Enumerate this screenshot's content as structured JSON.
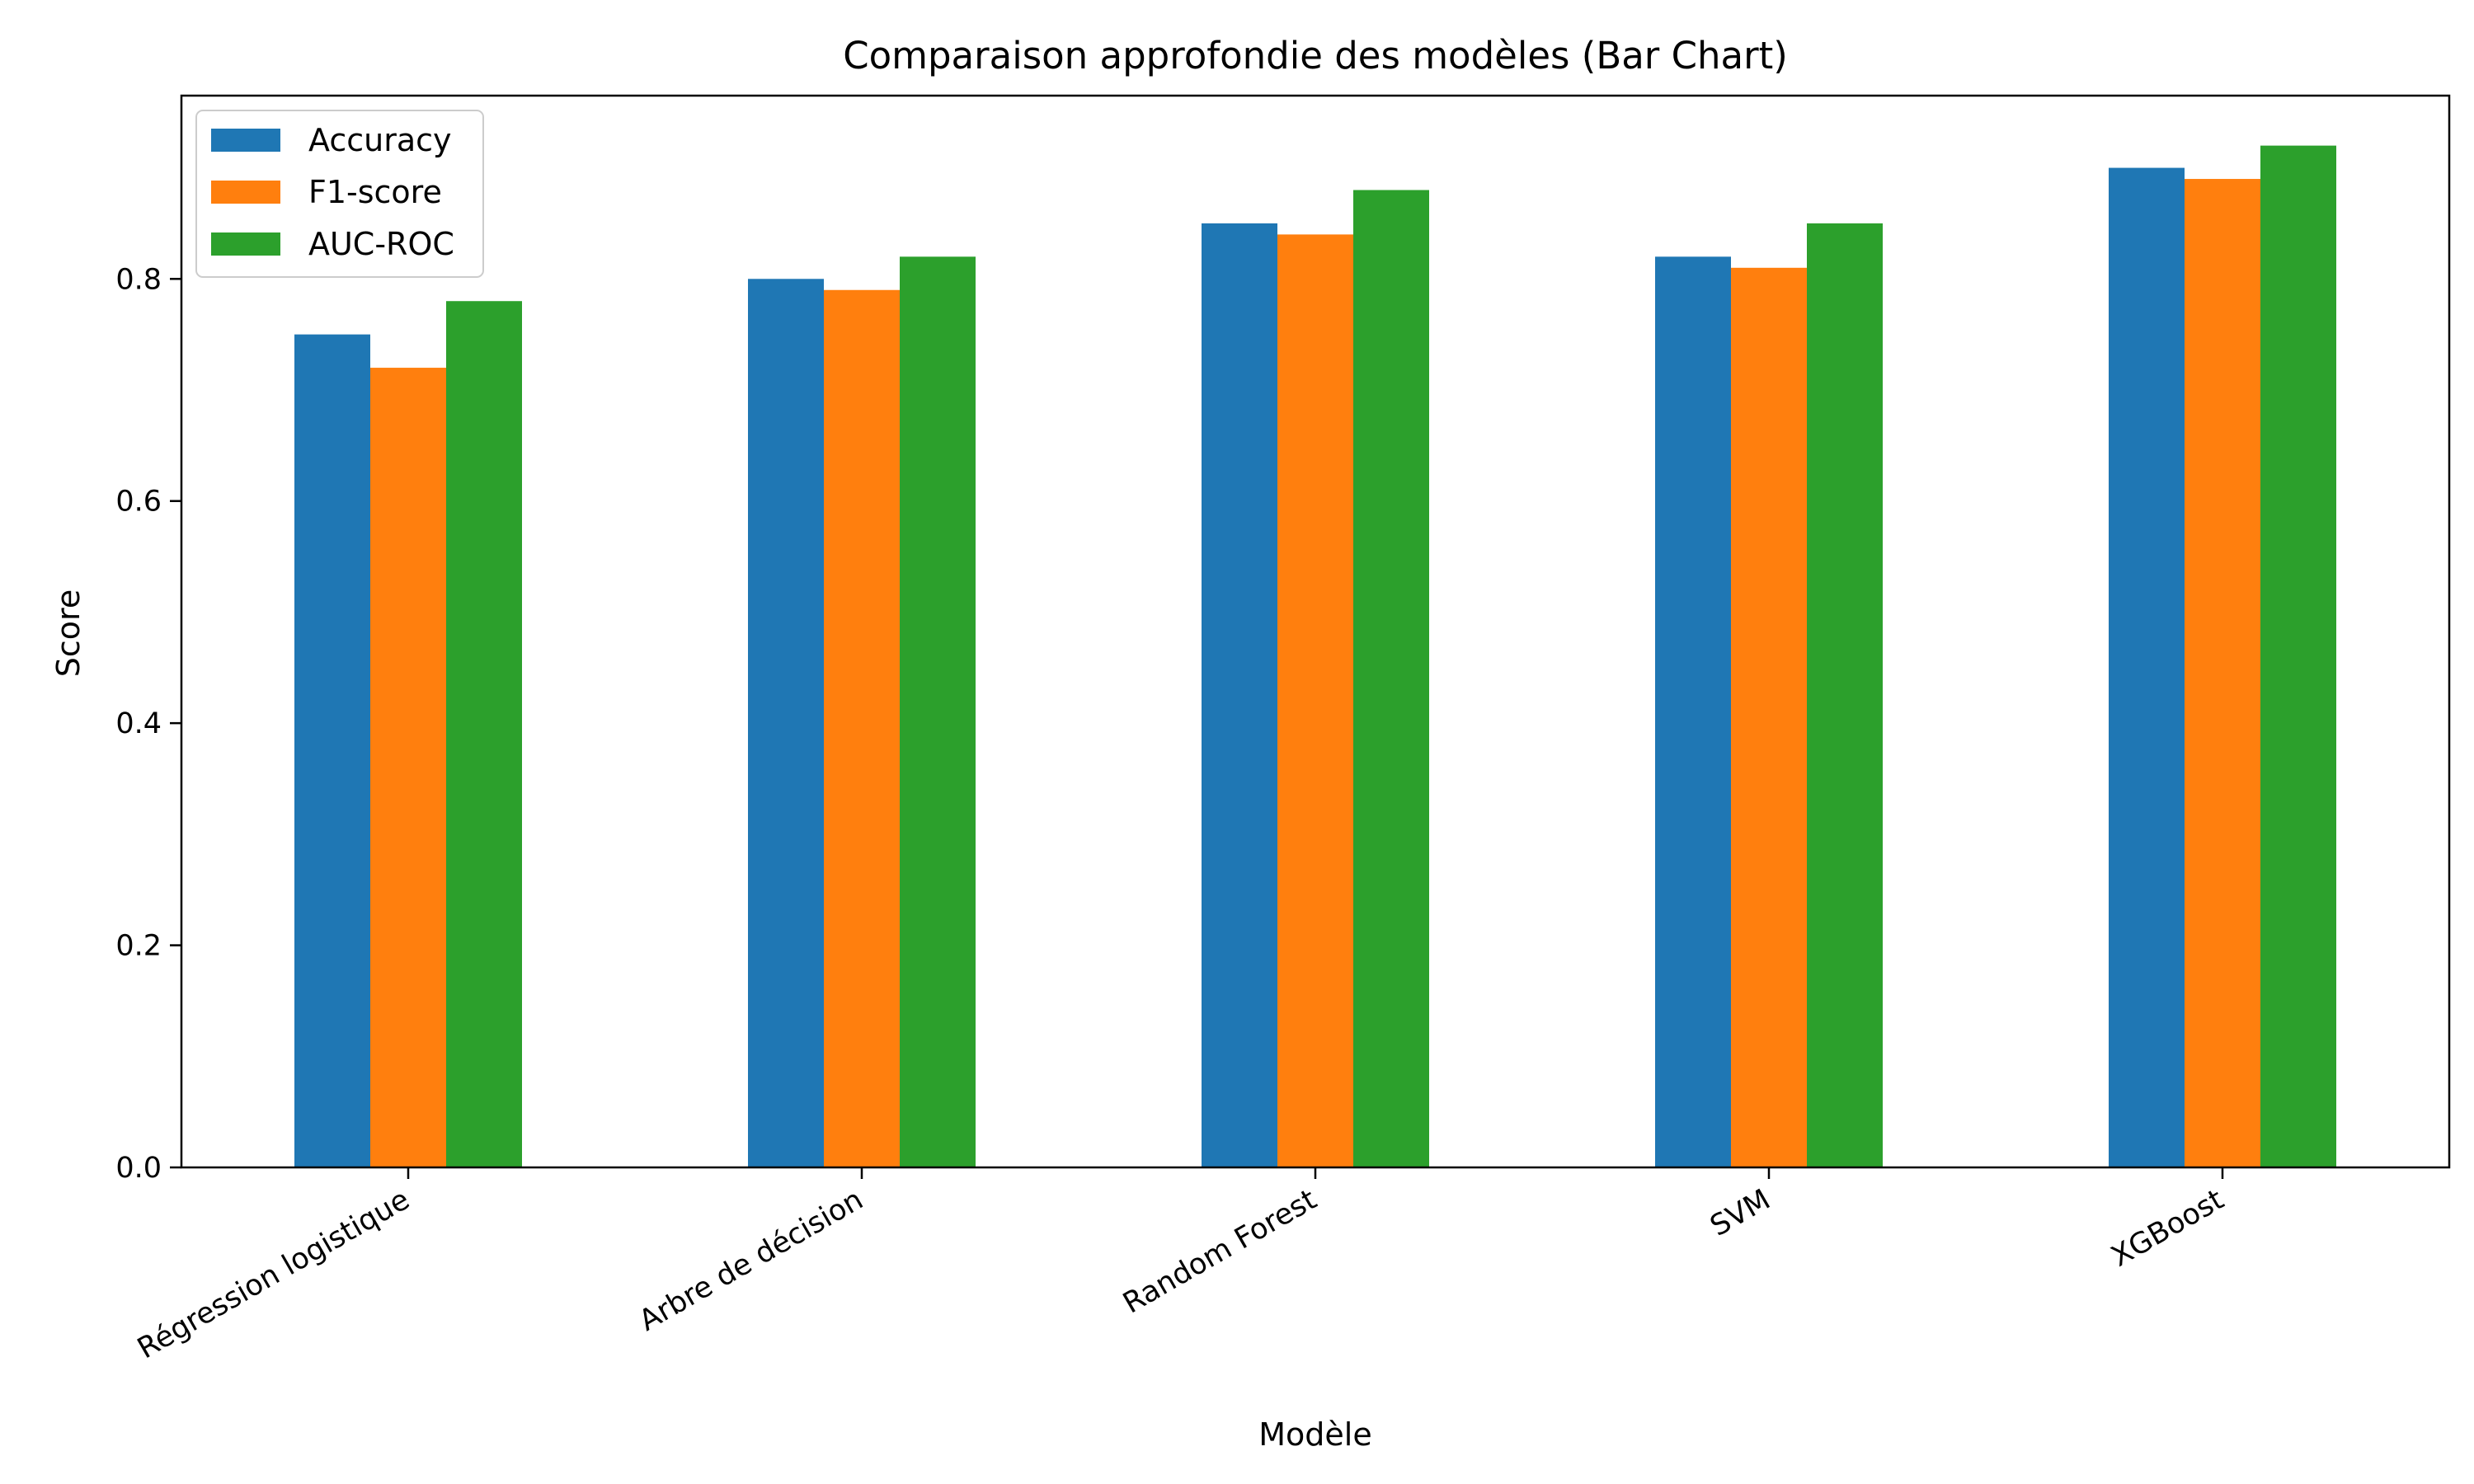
{
  "chart_data": {
    "type": "bar",
    "title": "Comparaison approfondie des modèles (Bar Chart)",
    "xlabel": "Modèle",
    "ylabel": "Score",
    "ylim": [
      0,
      0.965
    ],
    "yticks": [
      "0.0",
      "0.2",
      "0.4",
      "0.6",
      "0.8"
    ],
    "ytick_values": [
      0,
      0.2,
      0.4,
      0.6,
      0.8
    ],
    "categories": [
      "Régression logistique",
      "Arbre de décision",
      "Random Forest",
      "SVM",
      "XGBoost"
    ],
    "series": [
      {
        "name": "Accuracy",
        "color": "#1f77b4",
        "values": [
          0.75,
          0.8,
          0.85,
          0.82,
          0.9
        ]
      },
      {
        "name": "F1-score",
        "color": "#ff7f0e",
        "values": [
          0.72,
          0.79,
          0.84,
          0.81,
          0.89
        ]
      },
      {
        "name": "AUC-ROC",
        "color": "#2ca02c",
        "values": [
          0.78,
          0.82,
          0.88,
          0.85,
          0.92
        ]
      }
    ],
    "legend_position": "top-left",
    "grid": false
  }
}
